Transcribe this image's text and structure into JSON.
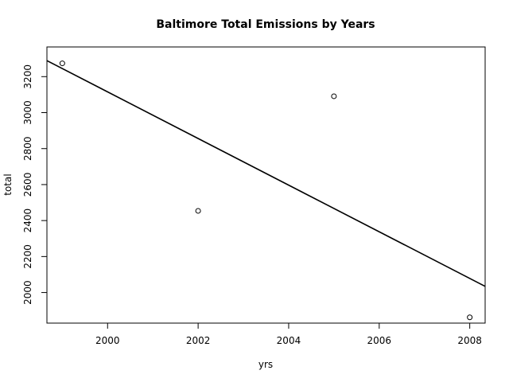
{
  "chart_data": {
    "type": "scatter",
    "title": "Baltimore Total Emissions by Years",
    "xlabel": "yrs",
    "ylabel": "total",
    "xlim": [
      1998.66,
      2008.34
    ],
    "ylim": [
      1830.0,
      3365.0
    ],
    "x_ticks": [
      2000,
      2002,
      2004,
      2006,
      2008
    ],
    "x_tick_labels": [
      "2000",
      "2002",
      "2004",
      "2006",
      "2008"
    ],
    "y_ticks": [
      2000,
      2200,
      2400,
      2600,
      2800,
      3000,
      3200
    ],
    "y_tick_labels": [
      "2000",
      "2200",
      "2400",
      "2600",
      "2800",
      "3000",
      "3200"
    ],
    "points": [
      {
        "x": 1999,
        "y": 3274
      },
      {
        "x": 2002,
        "y": 2454
      },
      {
        "x": 2005,
        "y": 3091
      },
      {
        "x": 2008,
        "y": 1862
      }
    ],
    "regression_line": {
      "intercept": 3374.5,
      "slope": -129.6,
      "x_origin": 1998
    },
    "grid": false,
    "legend": "none"
  }
}
